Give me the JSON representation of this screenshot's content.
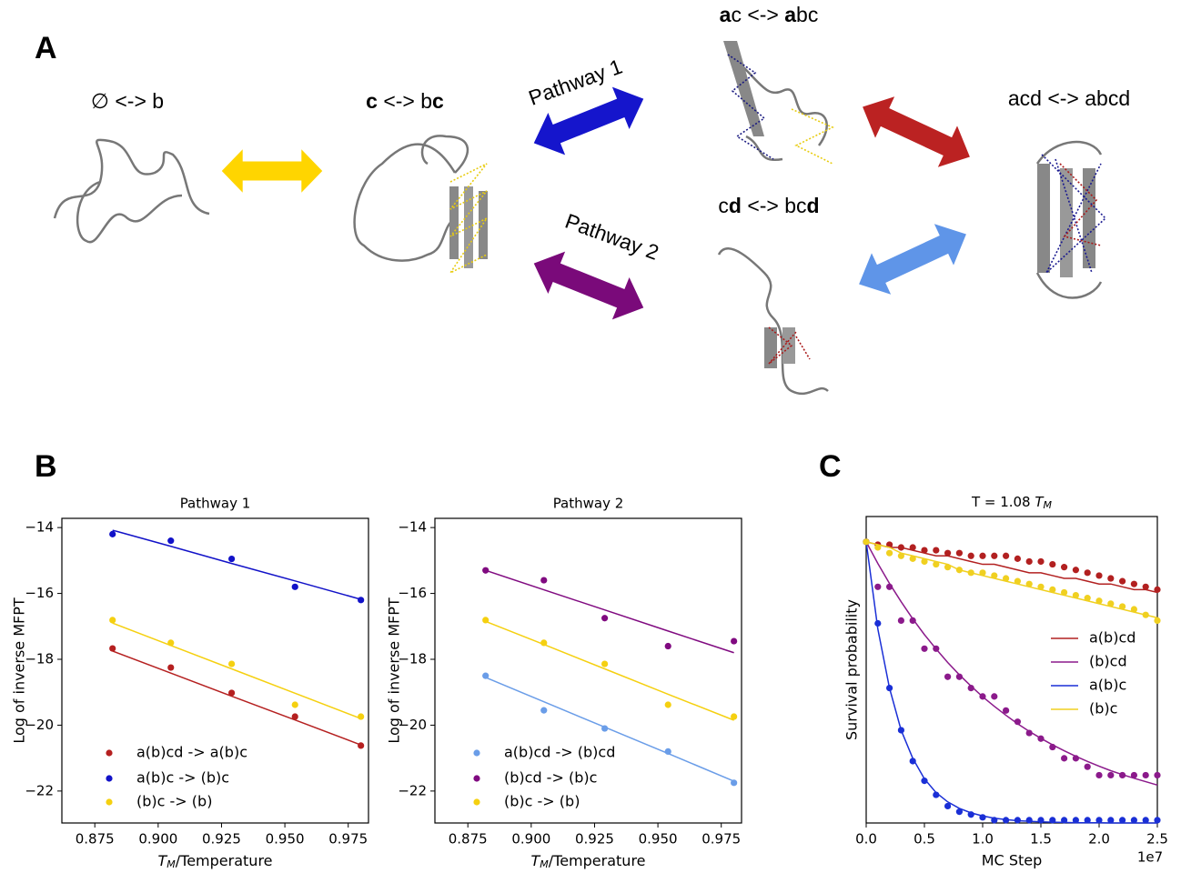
{
  "panels": [
    "A",
    "B",
    "C"
  ],
  "diagram": {
    "states": [
      {
        "segments": [
          {
            "text": "∅ <-> b",
            "bold": false
          }
        ]
      },
      {
        "segments": [
          {
            "text": "c",
            "bold": true
          },
          {
            "text": " <-> b",
            "bold": false
          },
          {
            "text": "c",
            "bold": true
          }
        ]
      },
      {
        "segments": [
          {
            "text": "a",
            "bold": true
          },
          {
            "text": "c <-> ",
            "bold": false
          },
          {
            "text": "a",
            "bold": true
          },
          {
            "text": "bc",
            "bold": false
          }
        ]
      },
      {
        "segments": [
          {
            "text": "c",
            "bold": false
          },
          {
            "text": "d",
            "bold": true
          },
          {
            "text": " <-> bc",
            "bold": false
          },
          {
            "text": "d",
            "bold": true
          }
        ]
      },
      {
        "segments": [
          {
            "text": "acd <-> abcd",
            "bold": false
          }
        ]
      }
    ],
    "pathways": [
      "Pathway 1",
      "Pathway 2"
    ]
  },
  "chart_data": [
    {
      "type": "scatter",
      "title": "Pathway 1",
      "xlabel": {
        "symbol": "T",
        "subscript": "M",
        "text": "/Temperature"
      },
      "ylabel": "Log of inverse MFPT",
      "x": [
        0.882,
        0.905,
        0.929,
        0.954,
        0.98
      ],
      "series": [
        {
          "name": "a(b)cd -> a(b)c",
          "color": "#b52020",
          "values": [
            -17.67,
            -18.25,
            -19.02,
            -19.74,
            -20.62
          ],
          "fit": [
            -17.75,
            -18.42,
            -19.12,
            -19.84,
            -20.6
          ]
        },
        {
          "name": "a(b)c -> (b)c",
          "color": "#1212c8",
          "values": [
            -14.2,
            -14.4,
            -14.95,
            -15.8,
            -16.2
          ],
          "fit": [
            -14.08,
            -14.57,
            -15.09,
            -15.62,
            -16.18
          ]
        },
        {
          "name": "(b)c -> (b)",
          "color": "#f5d010",
          "values": [
            -16.81,
            -17.5,
            -18.14,
            -19.38,
            -19.74
          ],
          "fit": [
            -16.9,
            -17.58,
            -18.29,
            -19.03,
            -19.8
          ]
        }
      ],
      "xlim": [
        0.862,
        0.983
      ],
      "ylim": [
        -22.97,
        -13.72
      ],
      "xticks": [
        0.875,
        {
          "value": 0.9,
          "label": "0.900"
        },
        0.925,
        {
          "value": 0.95,
          "label": "0.950"
        },
        0.975
      ],
      "yticks": [
        {
          "value": -14,
          "label": "−14"
        },
        {
          "value": -16,
          "label": "−16"
        },
        {
          "value": -18,
          "label": "−18"
        },
        {
          "value": -20,
          "label": "−20"
        },
        {
          "value": -22,
          "label": "−22"
        }
      ],
      "legend": "lower left"
    },
    {
      "type": "scatter",
      "title": "Pathway 2",
      "xlabel": {
        "symbol": "T",
        "subscript": "M",
        "text": "/Temperature"
      },
      "ylabel": "Log of inverse MFPT",
      "x": [
        0.882,
        0.905,
        0.929,
        0.954,
        0.98
      ],
      "series": [
        {
          "name": "a(b)cd -> (b)cd",
          "color": "#6a9de8",
          "values": [
            -18.5,
            -19.55,
            -20.1,
            -20.8,
            -21.75
          ],
          "fit": [
            -18.55,
            -19.29,
            -20.06,
            -20.86,
            -21.7
          ]
        },
        {
          "name": "(b)cd -> (b)c",
          "color": "#800a80",
          "values": [
            -15.3,
            -15.6,
            -16.75,
            -17.6,
            -17.45
          ],
          "fit": [
            -15.3,
            -15.89,
            -16.5,
            -17.14,
            -17.8
          ]
        },
        {
          "name": "(b)c -> (b)",
          "color": "#f5d010",
          "values": [
            -16.81,
            -17.5,
            -18.14,
            -19.38,
            -19.74
          ],
          "fit": [
            -16.85,
            -17.55,
            -18.29,
            -19.06,
            -19.85
          ]
        }
      ],
      "xlim": [
        0.862,
        0.983
      ],
      "ylim": [
        -22.97,
        -13.72
      ],
      "xticks": [
        0.875,
        {
          "value": 0.9,
          "label": "0.900"
        },
        0.925,
        {
          "value": 0.95,
          "label": "0.950"
        },
        0.975
      ],
      "yticks": [
        {
          "value": -14,
          "label": "−14"
        },
        {
          "value": -16,
          "label": "−16"
        },
        {
          "value": -18,
          "label": "−18"
        },
        {
          "value": -20,
          "label": "−20"
        },
        {
          "value": -22,
          "label": "−22"
        }
      ],
      "legend": "lower left"
    },
    {
      "type": "scatter",
      "title": {
        "text": "T = 1.08 ",
        "symbol": "T",
        "subscript": "M"
      },
      "xlabel": "MC Step",
      "x_offset": "1e7",
      "ylabel": "Survival probability",
      "x": [
        0,
        0.1,
        0.2,
        0.3,
        0.4,
        0.5,
        0.6,
        0.7,
        0.8,
        0.9,
        1.0,
        1.1,
        1.2,
        1.3,
        1.4,
        1.5,
        1.6,
        1.7,
        1.8,
        1.9,
        2.0,
        2.1,
        2.2,
        2.3,
        2.4,
        2.5
      ],
      "series": [
        {
          "name": "a(b)cd",
          "color": "#b22020",
          "values": [
            1.0,
            0.99,
            0.99,
            0.98,
            0.98,
            0.97,
            0.97,
            0.96,
            0.96,
            0.95,
            0.95,
            0.95,
            0.95,
            0.94,
            0.93,
            0.93,
            0.92,
            0.91,
            0.9,
            0.89,
            0.88,
            0.87,
            0.86,
            0.85,
            0.84,
            0.83
          ],
          "fit": [
            1,
            0.99,
            0.98,
            0.98,
            0.97,
            0.96,
            0.95,
            0.95,
            0.94,
            0.93,
            0.92,
            0.92,
            0.91,
            0.9,
            0.89,
            0.89,
            0.88,
            0.87,
            0.87,
            0.86,
            0.85,
            0.85,
            0.84,
            0.83,
            0.83,
            0.82
          ]
        },
        {
          "name": "(b)cd",
          "color": "#8b1a8b",
          "values": [
            1.0,
            0.84,
            0.84,
            0.72,
            0.72,
            0.62,
            0.62,
            0.52,
            0.52,
            0.48,
            0.45,
            0.45,
            0.4,
            0.36,
            0.32,
            0.3,
            0.27,
            0.23,
            0.23,
            0.2,
            0.17,
            0.17,
            0.17,
            0.17,
            0.17,
            0.17
          ],
          "fit": [
            1,
            0.923,
            0.852,
            0.787,
            0.726,
            0.67,
            0.619,
            0.571,
            0.527,
            0.487,
            0.449,
            0.415,
            0.383,
            0.353,
            0.326,
            0.301,
            0.278,
            0.257,
            0.237,
            0.219,
            0.202,
            0.186,
            0.172,
            0.159,
            0.147,
            0.135
          ]
        },
        {
          "name": "a(b)c",
          "color": "#1a2fd6",
          "values": [
            1.0,
            0.71,
            0.48,
            0.33,
            0.22,
            0.15,
            0.1,
            0.06,
            0.04,
            0.03,
            0.02,
            0.01,
            0.01,
            0.01,
            0.01,
            0.01,
            0.01,
            0.01,
            0.01,
            0.01,
            0.01,
            0.01,
            0.01,
            0.01,
            0.01,
            0.01
          ],
          "fit": [
            1,
            0.69,
            0.48,
            0.33,
            0.23,
            0.157,
            0.108,
            0.075,
            0.052,
            0.036,
            0.025,
            0.017,
            0.012,
            0.008,
            0.006,
            0.004,
            0.003,
            0.002,
            0.001,
            0.001,
            0.001,
            0,
            0,
            0,
            0,
            0
          ]
        },
        {
          "name": "(b)c",
          "color": "#f0d020",
          "values": [
            1.0,
            0.98,
            0.96,
            0.95,
            0.94,
            0.93,
            0.92,
            0.91,
            0.9,
            0.89,
            0.89,
            0.88,
            0.87,
            0.86,
            0.85,
            0.84,
            0.83,
            0.82,
            0.81,
            0.8,
            0.79,
            0.78,
            0.77,
            0.76,
            0.74,
            0.72
          ],
          "fit": [
            1,
            0.99,
            0.98,
            0.96,
            0.95,
            0.94,
            0.93,
            0.92,
            0.9,
            0.89,
            0.88,
            0.87,
            0.86,
            0.85,
            0.84,
            0.83,
            0.82,
            0.81,
            0.8,
            0.79,
            0.78,
            0.77,
            0.76,
            0.75,
            0.74,
            0.73
          ]
        }
      ],
      "xlim": [
        0,
        2.5
      ],
      "ylim": [
        0,
        1.09
      ],
      "xticks": [
        {
          "value": 0,
          "label": "0.0"
        },
        0.5,
        {
          "value": 1,
          "label": "1.0"
        },
        1.5,
        {
          "value": 2,
          "label": "2.0"
        },
        2.5
      ],
      "legend": "center right"
    }
  ]
}
